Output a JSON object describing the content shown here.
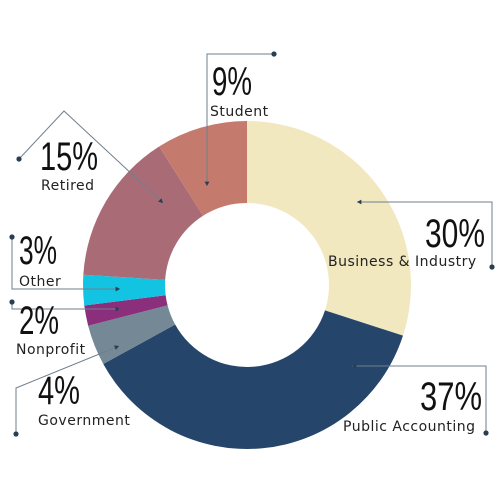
{
  "chart_data": {
    "type": "pie",
    "variant": "donut",
    "title": "",
    "slices": [
      {
        "label": "Business & Industry",
        "value": 30,
        "percent_text": "30%",
        "color": "#F2E8C0"
      },
      {
        "label": "Public Accounting",
        "value": 37,
        "percent_text": "37%",
        "color": "#26456A"
      },
      {
        "label": "Government",
        "value": 4,
        "percent_text": "4%",
        "color": "#748896"
      },
      {
        "label": "Nonprofit",
        "value": 2,
        "percent_text": "2%",
        "color": "#8B2F7C"
      },
      {
        "label": "Other",
        "value": 3,
        "percent_text": "3%",
        "color": "#13C3E2"
      },
      {
        "label": "Retired",
        "value": 15,
        "percent_text": "15%",
        "color": "#A96C77"
      },
      {
        "label": "Student",
        "value": 9,
        "percent_text": "9%",
        "color": "#C47A6C"
      }
    ],
    "leader_line_color": "#6F7F8E"
  }
}
